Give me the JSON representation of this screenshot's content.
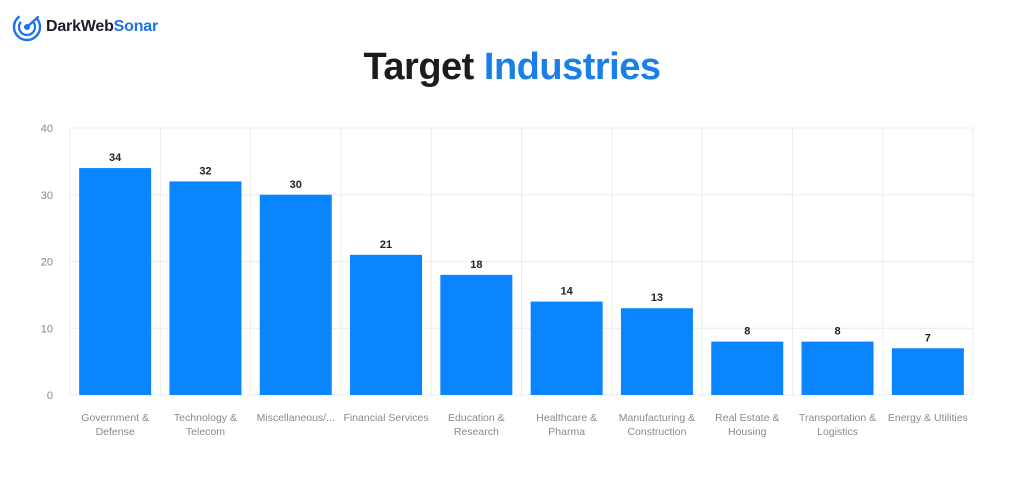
{
  "brand": {
    "name_part1": "DarkWeb",
    "name_part2": "Sonar",
    "logo_icon": "radar-icon",
    "colors": {
      "dark": "#1c1c2e",
      "accent": "#1a73e8"
    }
  },
  "title": {
    "part1": "Target",
    "part2": "Industries"
  },
  "chart_data": {
    "type": "bar",
    "title": "Target Industries",
    "xlabel": "",
    "ylabel": "",
    "ylim": [
      0,
      40
    ],
    "yticks": [
      0,
      10,
      20,
      30,
      40
    ],
    "grid": true,
    "bar_color": "#0a84ff",
    "categories": [
      [
        "Government &",
        "Defense"
      ],
      [
        "Technology &",
        "Telecom"
      ],
      [
        "Miscellaneous/..."
      ],
      [
        "Financial Services"
      ],
      [
        "Education &",
        "Research"
      ],
      [
        "Healthcare &",
        "Pharma"
      ],
      [
        "Manufacturing &",
        "Construction"
      ],
      [
        "Real Estate &",
        "Housing"
      ],
      [
        "Transportation &",
        "Logistics"
      ],
      [
        "Energy & Utilities"
      ]
    ],
    "values": [
      34,
      32,
      30,
      21,
      18,
      14,
      13,
      8,
      8,
      7
    ]
  }
}
